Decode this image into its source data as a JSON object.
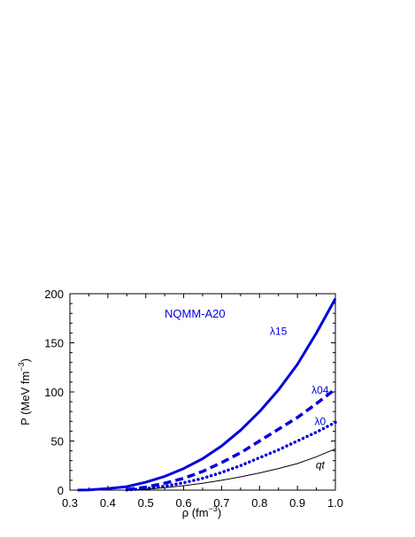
{
  "chart_data": {
    "type": "line",
    "title": "NQMM-A20",
    "xlabel": {
      "base": "ρ (fm",
      "sup": "−3",
      "end": ")"
    },
    "ylabel": {
      "base": "P (MeV fm",
      "sup": "−3",
      "end": ")"
    },
    "xlim": [
      0.3,
      1.0
    ],
    "ylim": [
      0,
      200
    ],
    "x_ticks": [
      "0.3",
      "0.4",
      "0.5",
      "0.6",
      "0.7",
      "0.8",
      "0.9",
      "1.0"
    ],
    "y_ticks": [
      "0",
      "50",
      "100",
      "150",
      "200"
    ],
    "grid": false,
    "series": [
      {
        "name": "λ15",
        "color": "#0000dd",
        "style": "solid-thick",
        "x": [
          0.32,
          0.35,
          0.4,
          0.45,
          0.5,
          0.55,
          0.6,
          0.65,
          0.7,
          0.75,
          0.8,
          0.85,
          0.9,
          0.95,
          1.0
        ],
        "y": [
          0,
          0.3,
          1.5,
          3.5,
          8,
          14,
          22,
          32,
          45,
          61,
          80,
          102,
          128,
          160,
          195
        ]
      },
      {
        "name": "λ04",
        "color": "#0000dd",
        "style": "dashed",
        "x": [
          0.45,
          0.5,
          0.55,
          0.6,
          0.65,
          0.7,
          0.75,
          0.8,
          0.85,
          0.9,
          0.95,
          1.0
        ],
        "y": [
          0.5,
          3,
          7,
          12,
          19,
          28,
          38,
          50,
          62,
          74,
          88,
          103
        ]
      },
      {
        "name": "λ0",
        "color": "#0000dd",
        "style": "dotted",
        "x": [
          0.45,
          0.5,
          0.55,
          0.6,
          0.65,
          0.7,
          0.75,
          0.8,
          0.85,
          0.9,
          0.95,
          1.0
        ],
        "y": [
          0.2,
          1.5,
          4,
          7.5,
          12,
          18,
          25,
          33,
          41,
          50,
          59,
          69
        ]
      },
      {
        "name": "qt",
        "color": "#000000",
        "style": "solid-thin",
        "x": [
          0.45,
          0.5,
          0.55,
          0.6,
          0.65,
          0.7,
          0.75,
          0.8,
          0.85,
          0.9,
          0.95,
          1.0
        ],
        "y": [
          0,
          0.8,
          2.5,
          4.5,
          7,
          10,
          13.5,
          17.5,
          22,
          27,
          34,
          42
        ]
      }
    ],
    "labels": [
      {
        "text": "λ15",
        "series": 0,
        "x": 0.85,
        "y": 158
      },
      {
        "text": "λ04",
        "series": 1,
        "x": 0.96,
        "y": 98
      },
      {
        "text": "λ0",
        "series": 2,
        "x": 0.96,
        "y": 66
      },
      {
        "text": "qt",
        "series": 3,
        "x": 0.96,
        "y": 22
      }
    ]
  }
}
